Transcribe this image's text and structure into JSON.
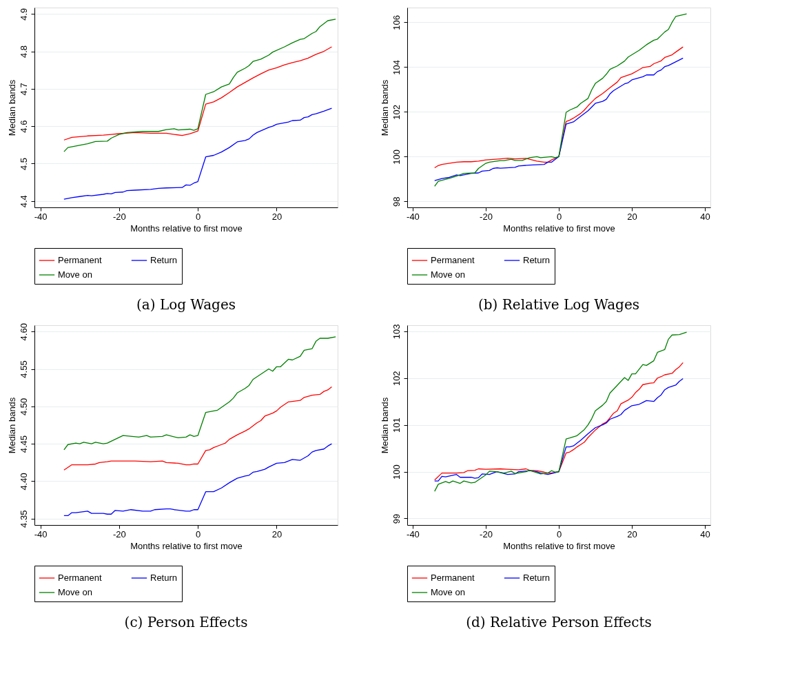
{
  "chart_data": [
    {
      "type": "line",
      "title": "(a) Log Wages",
      "xlabel": "Months relative to first move",
      "ylabel": "Median bands",
      "xlim": [
        -41.5,
        35.5
      ],
      "xticks": [
        -40,
        -20,
        0,
        20
      ],
      "ylim": [
        4.383,
        4.917
      ],
      "yticks": [
        4.4,
        4.5,
        4.6,
        4.7,
        4.8,
        4.9
      ],
      "grid": "y",
      "legend": "bottom",
      "marker": "none",
      "line_style": "solid",
      "series": [
        {
          "name": "Permanent",
          "color": "#ff0000",
          "x": [
            -34,
            -32,
            -28,
            -24,
            -22,
            -20,
            -16,
            -12,
            -8,
            -4,
            -2,
            0,
            2,
            4,
            6,
            8,
            10,
            12,
            14,
            16,
            18,
            20,
            22,
            24,
            26,
            28,
            30,
            32,
            34
          ],
          "values": [
            4.563,
            4.57,
            4.574,
            4.576,
            4.578,
            4.58,
            4.583,
            4.581,
            4.581,
            4.575,
            4.58,
            4.587,
            4.659,
            4.665,
            4.676,
            4.69,
            4.705,
            4.717,
            4.729,
            4.74,
            4.75,
            4.756,
            4.764,
            4.77,
            4.775,
            4.782,
            4.792,
            4.8,
            4.812
          ]
        },
        {
          "name": "Return",
          "color": "#0000ff",
          "x": [
            -34,
            -32,
            -30,
            -28,
            -27,
            -24,
            -23,
            -22,
            -21,
            -19,
            -18,
            -16,
            -12,
            -10,
            -8,
            -4,
            -3,
            -2,
            -1,
            0,
            2,
            4,
            6,
            8,
            10,
            12,
            13,
            14,
            15,
            18,
            19,
            20,
            23,
            24,
            26,
            27,
            28,
            29,
            30,
            32,
            34
          ],
          "values": [
            4.405,
            4.409,
            4.412,
            4.415,
            4.414,
            4.418,
            4.42,
            4.419,
            4.423,
            4.424,
            4.428,
            4.429,
            4.431,
            4.434,
            4.435,
            4.436,
            4.443,
            4.442,
            4.448,
            4.452,
            4.518,
            4.522,
            4.531,
            4.543,
            4.558,
            4.562,
            4.566,
            4.576,
            4.583,
            4.597,
            4.6,
            4.605,
            4.611,
            4.615,
            4.616,
            4.623,
            4.625,
            4.631,
            4.633,
            4.64,
            4.648
          ]
        },
        {
          "name": "Move on",
          "color": "#008000",
          "x": [
            -34,
            -33,
            -28,
            -26,
            -23,
            -22,
            -20,
            -18,
            -14,
            -12,
            -10,
            -8,
            -6,
            -5,
            -2,
            -1,
            0,
            2,
            4,
            6,
            8,
            9,
            10,
            12,
            13,
            14,
            16,
            18,
            19,
            22,
            24,
            26,
            27,
            29,
            30,
            31,
            33,
            35
          ],
          "values": [
            4.532,
            4.543,
            4.553,
            4.559,
            4.56,
            4.568,
            4.578,
            4.583,
            4.586,
            4.586,
            4.586,
            4.591,
            4.593,
            4.59,
            4.592,
            4.589,
            4.593,
            4.685,
            4.692,
            4.705,
            4.713,
            4.73,
            4.744,
            4.755,
            4.762,
            4.773,
            4.779,
            4.79,
            4.798,
            4.812,
            4.823,
            4.832,
            4.834,
            4.848,
            4.853,
            4.866,
            4.882,
            4.886
          ]
        }
      ]
    },
    {
      "type": "line",
      "title": "(b) Relative Log Wages",
      "xlabel": "Months relative to first move",
      "ylabel": "Median bands",
      "xlim": [
        -41.5,
        41.5
      ],
      "xticks": [
        -40,
        -20,
        0,
        20,
        40
      ],
      "ylim": [
        97.73,
        106.66
      ],
      "yticks": [
        98,
        100,
        102,
        104,
        106
      ],
      "grid": "y",
      "legend": "bottom",
      "marker": "none",
      "line_style": "solid",
      "series": [
        {
          "name": "Permanent",
          "color": "#ff0000",
          "x": [
            -34,
            -33,
            -32,
            -28,
            -26,
            -24,
            -22,
            -20,
            -16,
            -14,
            -12,
            -9,
            -8,
            -6,
            -4,
            -3,
            -2,
            0,
            2,
            3,
            4,
            6,
            7,
            8,
            10,
            12,
            14,
            16,
            17,
            20,
            22,
            23,
            25,
            26,
            28,
            29,
            31,
            32,
            34
          ],
          "values": [
            99.5,
            99.6,
            99.65,
            99.75,
            99.77,
            99.77,
            99.8,
            99.85,
            99.9,
            99.93,
            99.9,
            99.92,
            99.88,
            99.8,
            99.75,
            99.75,
            99.85,
            100,
            101.57,
            101.63,
            101.72,
            101.93,
            102.08,
            102.27,
            102.6,
            102.82,
            103.08,
            103.33,
            103.53,
            103.7,
            103.88,
            103.98,
            104.03,
            104.15,
            104.28,
            104.43,
            104.55,
            104.67,
            104.9
          ]
        },
        {
          "name": "Return",
          "color": "#0000ff",
          "x": [
            -34,
            -32,
            -30,
            -28,
            -27,
            -24,
            -22,
            -21,
            -19,
            -18,
            -17,
            -16,
            -12,
            -11,
            -8,
            -4,
            -3,
            -2,
            0,
            2,
            4,
            6,
            8,
            10,
            12,
            13,
            14,
            15,
            18,
            19,
            20,
            23,
            24,
            26,
            27,
            28,
            29,
            30,
            34
          ],
          "values": [
            98.93,
            99.02,
            99.07,
            99.18,
            99.15,
            99.25,
            99.27,
            99.35,
            99.38,
            99.47,
            99.5,
            99.48,
            99.52,
            99.58,
            99.62,
            99.65,
            99.75,
            99.75,
            100,
            101.45,
            101.55,
            101.8,
            102.05,
            102.38,
            102.47,
            102.56,
            102.8,
            102.95,
            103.25,
            103.3,
            103.43,
            103.57,
            103.65,
            103.65,
            103.8,
            103.87,
            104.02,
            104.07,
            104.4
          ]
        },
        {
          "name": "Move on",
          "color": "#008000",
          "x": [
            -34,
            -33,
            -30,
            -28,
            -26,
            -23,
            -22,
            -20,
            -19,
            -16,
            -15,
            -13,
            -12,
            -10,
            -8,
            -6,
            -5,
            -2,
            -1,
            0,
            2,
            3,
            5,
            6,
            8,
            9,
            10,
            12,
            13,
            14,
            16,
            18,
            19,
            22,
            24,
            26,
            27,
            29,
            30,
            31,
            32,
            35
          ],
          "values": [
            98.67,
            98.9,
            99.03,
            99.13,
            99.25,
            99.27,
            99.47,
            99.7,
            99.75,
            99.82,
            99.82,
            99.88,
            99.83,
            99.83,
            99.95,
            100.0,
            99.95,
            100.0,
            99.95,
            100,
            101.98,
            102.08,
            102.22,
            102.38,
            102.6,
            102.98,
            103.27,
            103.5,
            103.68,
            103.9,
            104.05,
            104.27,
            104.45,
            104.75,
            105.0,
            105.2,
            105.25,
            105.57,
            105.68,
            106.0,
            106.26,
            106.38
          ]
        }
      ]
    },
    {
      "type": "line",
      "title": "(c) Person Effects",
      "xlabel": "Months relative to first move",
      "ylabel": "Median bands",
      "xlim": [
        -41.5,
        35.5
      ],
      "xticks": [
        -40,
        -20,
        0,
        20
      ],
      "ylim": [
        4.3415,
        4.6085
      ],
      "yticks": [
        4.35,
        {
          "value": 4.4,
          "label": "4.40"
        },
        4.45,
        {
          "value": 4.5,
          "label": "4.50"
        },
        4.55,
        {
          "value": 4.6,
          "label": "4.60"
        }
      ],
      "grid": "y",
      "legend": "bottom",
      "marker": "none",
      "line_style": "solid",
      "series": [
        {
          "name": "Permanent",
          "color": "#ff0000",
          "x": [
            -34,
            -32,
            -28,
            -26,
            -25,
            -23,
            -22,
            -16,
            -12,
            -9,
            -8,
            -5,
            -3,
            -2,
            -1,
            0,
            2,
            3,
            4,
            6,
            7,
            8,
            10,
            12,
            13,
            15,
            16,
            17,
            19,
            20,
            21,
            23,
            26,
            27,
            29,
            31,
            32,
            33,
            34
          ],
          "values": [
            4.415,
            4.422,
            4.422,
            4.423,
            4.425,
            4.426,
            4.427,
            4.427,
            4.426,
            4.427,
            4.425,
            4.424,
            4.422,
            4.422,
            4.423,
            4.423,
            4.441,
            4.442,
            4.445,
            4.449,
            4.451,
            4.456,
            4.462,
            4.467,
            4.47,
            4.478,
            4.481,
            4.487,
            4.491,
            4.494,
            4.499,
            4.506,
            4.508,
            4.512,
            4.515,
            4.516,
            4.52,
            4.522,
            4.526
          ]
        },
        {
          "name": "Return",
          "color": "#0000ff",
          "x": [
            -34,
            -33,
            -32,
            -31,
            -28,
            -27,
            -24,
            -23,
            -22,
            -21,
            -19,
            -17,
            -14,
            -12,
            -11,
            -8,
            -7,
            -6,
            -3,
            -2,
            -1,
            0,
            2,
            3,
            4,
            6,
            8,
            10,
            12,
            13,
            14,
            15,
            17,
            18,
            20,
            22,
            24,
            26,
            28,
            29,
            30,
            32,
            33,
            34
          ],
          "values": [
            4.354,
            4.354,
            4.358,
            4.358,
            4.36,
            4.357,
            4.357,
            4.356,
            4.356,
            4.361,
            4.36,
            4.362,
            4.36,
            4.36,
            4.362,
            4.363,
            4.363,
            4.362,
            4.36,
            4.36,
            4.362,
            4.362,
            4.386,
            4.386,
            4.386,
            4.391,
            4.398,
            4.404,
            4.407,
            4.408,
            4.412,
            4.413,
            4.416,
            4.419,
            4.424,
            4.425,
            4.429,
            4.428,
            4.434,
            4.439,
            4.441,
            4.443,
            4.447,
            4.45
          ]
        },
        {
          "name": "Move on",
          "color": "#008000",
          "x": [
            -34,
            -33,
            -31,
            -30,
            -29,
            -27,
            -26,
            -24,
            -23,
            -19,
            -15,
            -13,
            -12,
            -9,
            -8,
            -5,
            -3,
            -2,
            -1,
            0,
            2,
            5,
            8,
            9,
            10,
            12,
            13,
            14,
            18,
            19,
            20,
            21,
            23,
            24,
            26,
            27,
            29,
            30,
            31,
            33,
            35
          ],
          "values": [
            4.442,
            4.449,
            4.451,
            4.45,
            4.452,
            4.45,
            4.452,
            4.45,
            4.451,
            4.461,
            4.459,
            4.461,
            4.459,
            4.46,
            4.462,
            4.458,
            4.459,
            4.462,
            4.46,
            4.461,
            4.492,
            4.495,
            4.506,
            4.511,
            4.518,
            4.524,
            4.528,
            4.536,
            4.55,
            4.547,
            4.553,
            4.553,
            4.563,
            4.562,
            4.567,
            4.575,
            4.577,
            4.587,
            4.591,
            4.591,
            4.593
          ]
        }
      ]
    },
    {
      "type": "line",
      "title": "(d) Relative Person Effects",
      "xlabel": "Months relative to first move",
      "ylabel": "Median bands",
      "xlim": [
        -41.5,
        41.5
      ],
      "xticks": [
        -40,
        -20,
        0,
        20,
        40
      ],
      "ylim": [
        98.86,
        103.13
      ],
      "yticks": [
        99,
        100,
        101,
        102,
        103
      ],
      "grid": "y",
      "legend": "bottom",
      "marker": "none",
      "line_style": "solid",
      "series": [
        {
          "name": "Permanent",
          "color": "#ff0000",
          "x": [
            -34,
            -32,
            -28,
            -26,
            -25,
            -23,
            -22,
            -20,
            -16,
            -14,
            -11,
            -9,
            -8,
            -6,
            -4,
            -3,
            -2,
            0,
            2,
            3,
            4,
            5,
            6,
            7,
            8,
            10,
            12,
            13,
            14,
            15,
            16,
            17,
            19,
            20,
            21,
            22,
            23,
            25,
            26,
            27,
            28,
            29,
            31,
            32,
            33,
            34
          ],
          "values": [
            99.82,
            99.97,
            99.97,
            99.98,
            100.02,
            100.03,
            100.06,
            100.05,
            100.06,
            100.05,
            100.04,
            100.06,
            100.03,
            100.02,
            99.99,
            99.97,
            99.97,
            100,
            100.4,
            100.42,
            100.47,
            100.53,
            100.58,
            100.63,
            100.73,
            100.89,
            101.02,
            101.06,
            101.15,
            101.25,
            101.3,
            101.45,
            101.53,
            101.59,
            101.69,
            101.76,
            101.86,
            101.89,
            101.9,
            102.0,
            102.03,
            102.07,
            102.1,
            102.18,
            102.24,
            102.33
          ]
        },
        {
          "name": "Return",
          "color": "#0000ff",
          "x": [
            -34,
            -33,
            -32,
            -31,
            -28,
            -27,
            -24,
            -23,
            -22,
            -21,
            -19,
            -17,
            -14,
            -12,
            -11,
            -8,
            -6,
            -5,
            -3,
            -2,
            0,
            2,
            3,
            4,
            6,
            8,
            10,
            12,
            13,
            14,
            16,
            17,
            18,
            20,
            22,
            23,
            24,
            26,
            27,
            28,
            29,
            30,
            32,
            33,
            34
          ],
          "values": [
            99.8,
            99.8,
            99.9,
            99.89,
            99.94,
            99.88,
            99.88,
            99.86,
            99.87,
            99.95,
            99.94,
            100.0,
            99.94,
            99.95,
            100.0,
            100.02,
            100.0,
            99.97,
            99.94,
            99.96,
            100,
            100.53,
            100.53,
            100.55,
            100.67,
            100.81,
            100.94,
            101.0,
            101.04,
            101.12,
            101.18,
            101.22,
            101.31,
            101.41,
            101.44,
            101.48,
            101.52,
            101.5,
            101.58,
            101.64,
            101.75,
            101.8,
            101.85,
            101.93,
            101.99
          ]
        },
        {
          "name": "Move on",
          "color": "#008000",
          "x": [
            -34,
            -33,
            -31,
            -30,
            -29,
            -27,
            -26,
            -24,
            -23,
            -20,
            -19,
            -17,
            -15,
            -13,
            -12,
            -9,
            -8,
            -5,
            -3,
            -2,
            -1,
            0,
            2,
            3,
            5,
            7,
            8,
            9,
            10,
            12,
            13,
            14,
            18,
            19,
            20,
            21,
            23,
            24,
            26,
            27,
            29,
            30,
            31,
            33,
            35
          ],
          "values": [
            99.58,
            99.73,
            99.79,
            99.76,
            99.8,
            99.75,
            99.8,
            99.76,
            99.77,
            99.93,
            100.01,
            100.0,
            99.97,
            100.01,
            99.96,
            100.0,
            100.03,
            99.95,
            99.97,
            100.02,
            99.99,
            100,
            100.7,
            100.72,
            100.77,
            100.9,
            101.0,
            101.13,
            101.3,
            101.42,
            101.5,
            101.68,
            102.01,
            101.95,
            102.09,
            102.09,
            102.29,
            102.27,
            102.37,
            102.55,
            102.61,
            102.83,
            102.92,
            102.93,
            102.98
          ]
        }
      ]
    }
  ]
}
